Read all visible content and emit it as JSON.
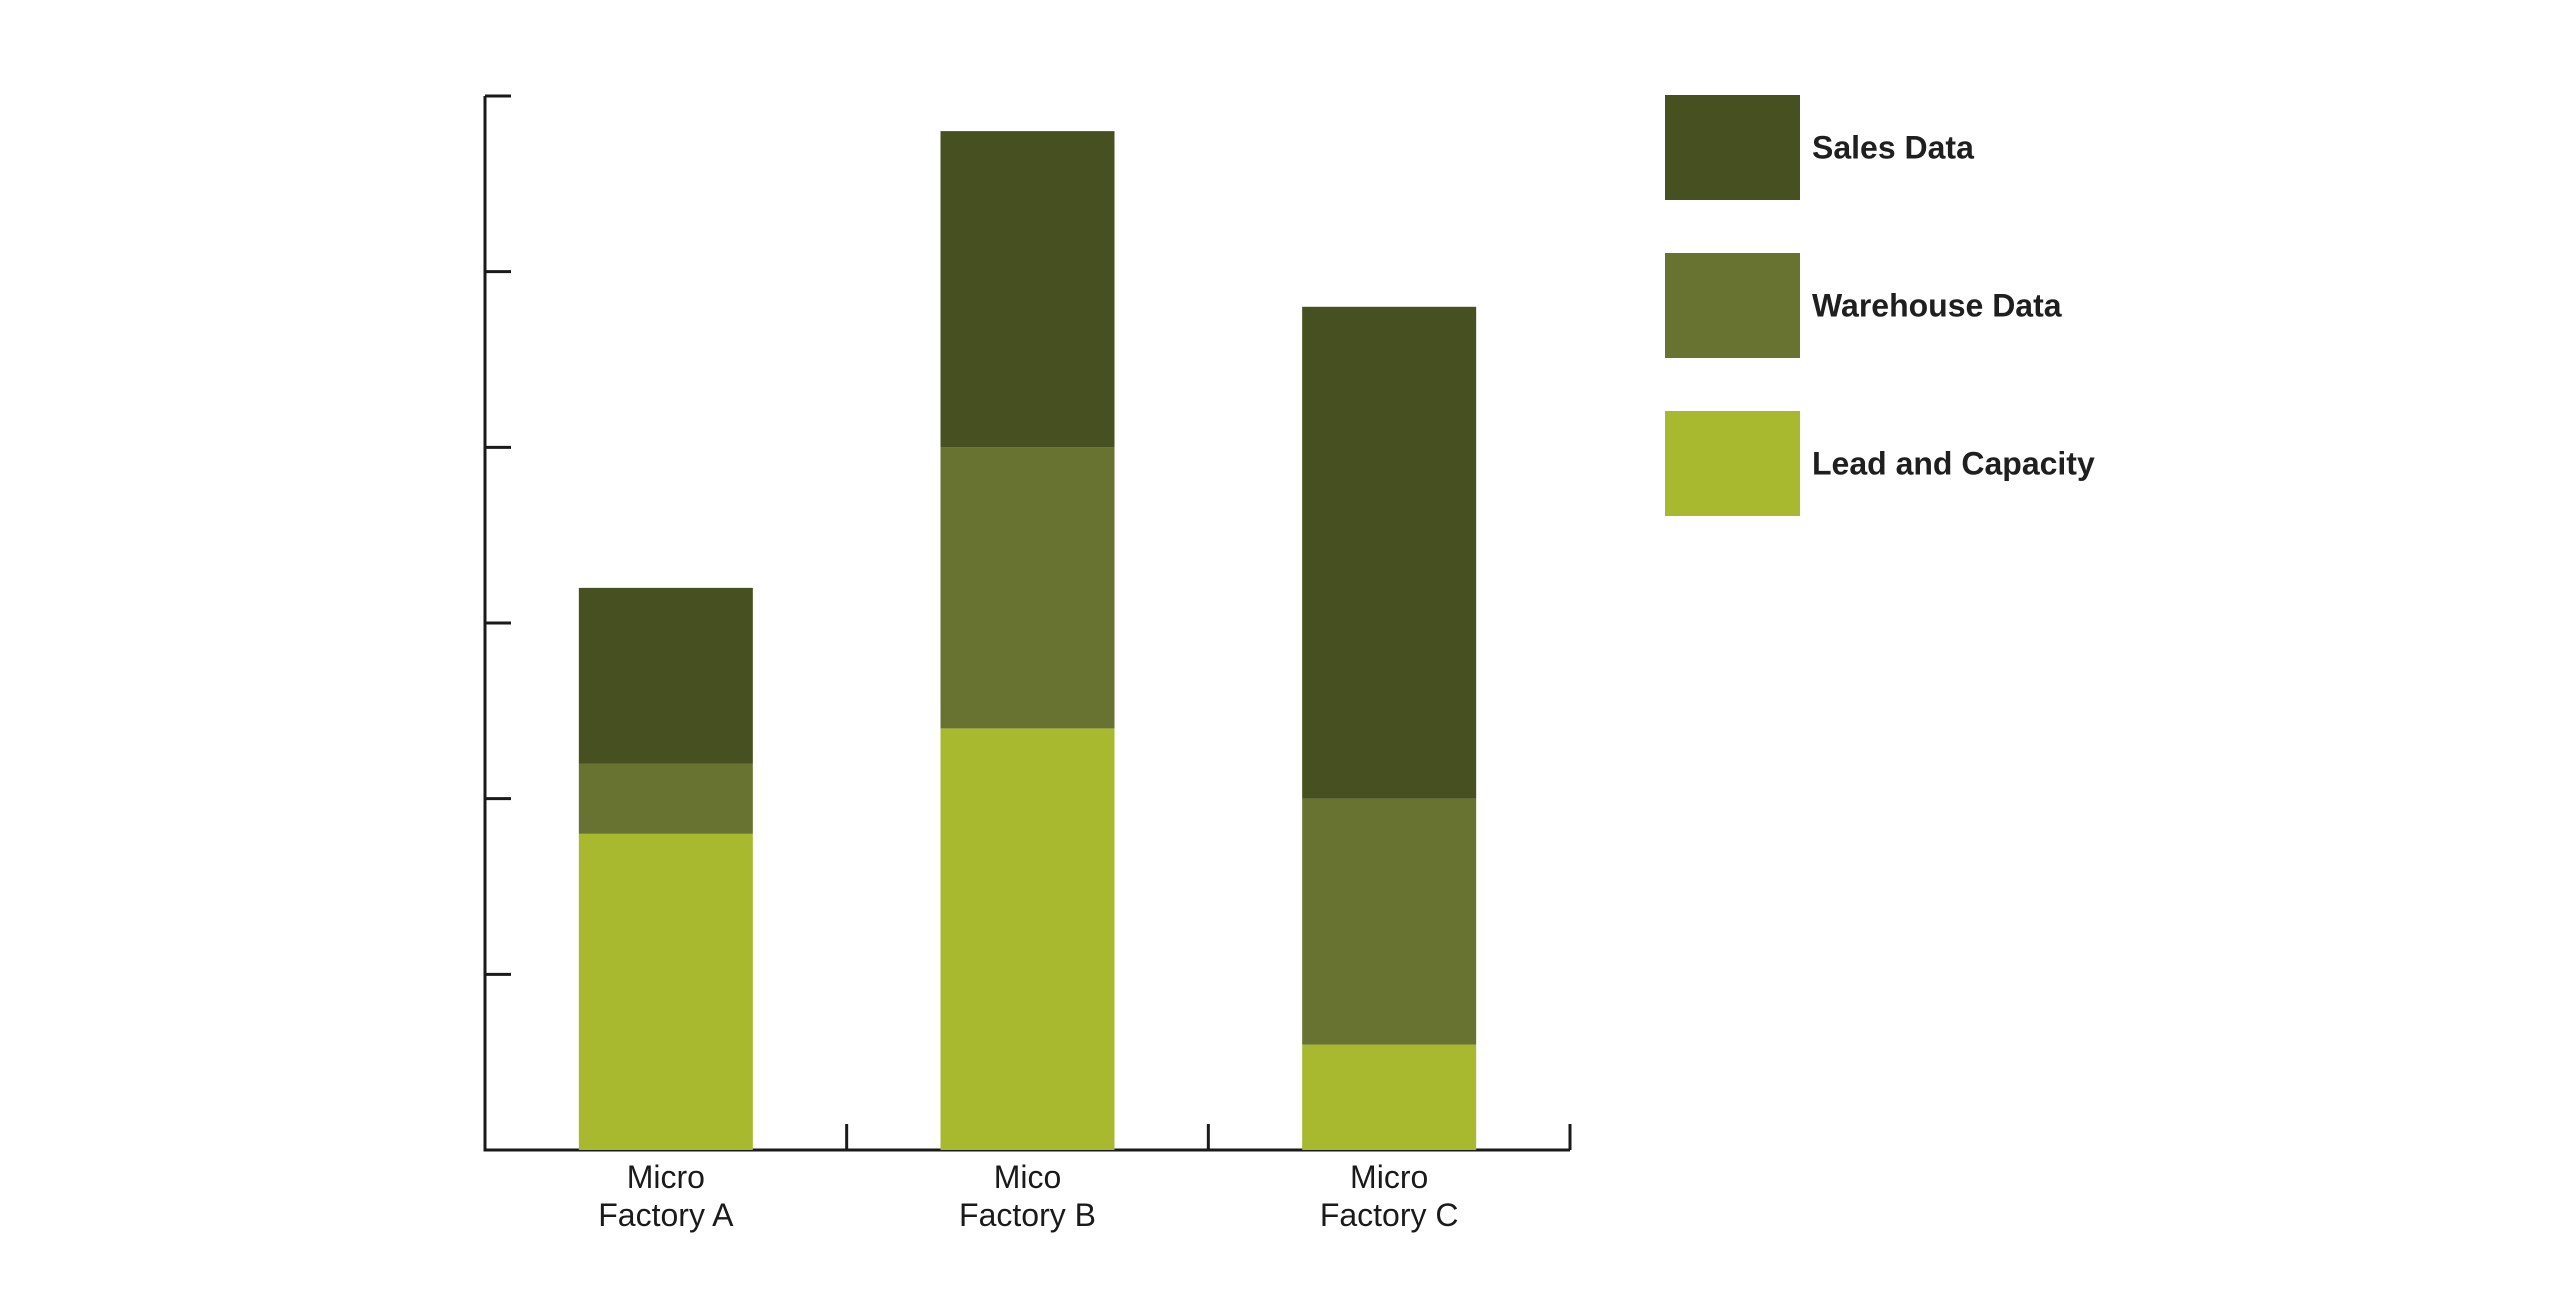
{
  "chart_data": {
    "type": "bar",
    "stacked": true,
    "categories": [
      [
        "Micro",
        "Factory A"
      ],
      [
        "Mico",
        "Factory B"
      ],
      [
        "Micro",
        "Factory C"
      ]
    ],
    "series": [
      {
        "name": "Lead and Capacity",
        "values": [
          1.8,
          2.4,
          0.6
        ],
        "color": "#a8b92f"
      },
      {
        "name": "Warehouse Data",
        "values": [
          0.4,
          1.6,
          1.4
        ],
        "color": "#687331"
      },
      {
        "name": "Sales Data",
        "values": [
          1.0,
          1.8,
          2.8
        ],
        "color": "#475020"
      }
    ],
    "legend_order": [
      "Sales Data",
      "Warehouse Data",
      "Lead and Capacity"
    ],
    "legend_position": "right",
    "ylim": [
      0,
      6
    ],
    "yticks": [
      0,
      1,
      2,
      3,
      4,
      5,
      6
    ],
    "ytick_labels_shown": false,
    "grid": false,
    "title": "",
    "xlabel": "",
    "ylabel": ""
  }
}
